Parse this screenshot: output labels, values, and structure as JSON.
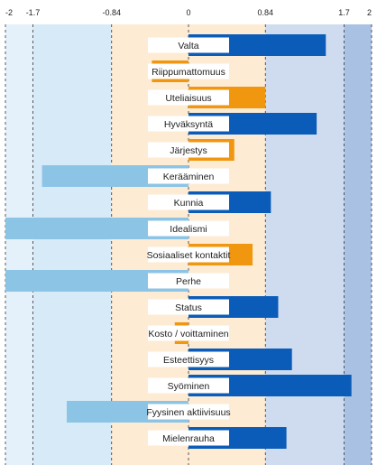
{
  "chart_data": {
    "type": "bar",
    "orientation": "horizontal",
    "xlim": [
      -2,
      2
    ],
    "ticks": [
      {
        "value": -2,
        "label": "-2"
      },
      {
        "value": -1.7,
        "label": "-1.7"
      },
      {
        "value": -0.84,
        "label": "-0.84"
      },
      {
        "value": 0,
        "label": "0"
      },
      {
        "value": 0.84,
        "label": "0.84"
      },
      {
        "value": 1.7,
        "label": "1.7"
      },
      {
        "value": 2,
        "label": "2"
      }
    ],
    "categories": [
      "Valta",
      "Riippumattomuus",
      "Uteliaisuus",
      "Hyväksyntä",
      "Järjestys",
      "Kerääminen",
      "Kunnia",
      "Idealismi",
      "Sosiaaliset kontaktit",
      "Perhe",
      "Status",
      "Kosto / voittaminen",
      "Esteettisyys",
      "Syöminen",
      "Fyysinen aktiivisuus",
      "Mielenrauha"
    ],
    "values": [
      1.5,
      -0.4,
      0.84,
      1.4,
      0.5,
      -1.6,
      0.9,
      -2.0,
      0.7,
      -2.0,
      0.98,
      -0.15,
      1.13,
      1.78,
      -1.33,
      1.07
    ],
    "grid": "dashed vertical lines at tick values",
    "legend": "none",
    "colors": {
      "strong_positive": "#0a5cb8",
      "moderate": "#f0960f",
      "strong_negative": "#8cc4e6",
      "band_outer_negative": "#e4f1fa",
      "band_middle_negative": "#d6ebf7",
      "band_neutral": "#fdebd4",
      "band_middle_positive": "#cfdcef",
      "band_outer_positive": "#a9c1e3",
      "label_box": "#ffffff",
      "text": "#222222",
      "grid": "#333333"
    }
  }
}
